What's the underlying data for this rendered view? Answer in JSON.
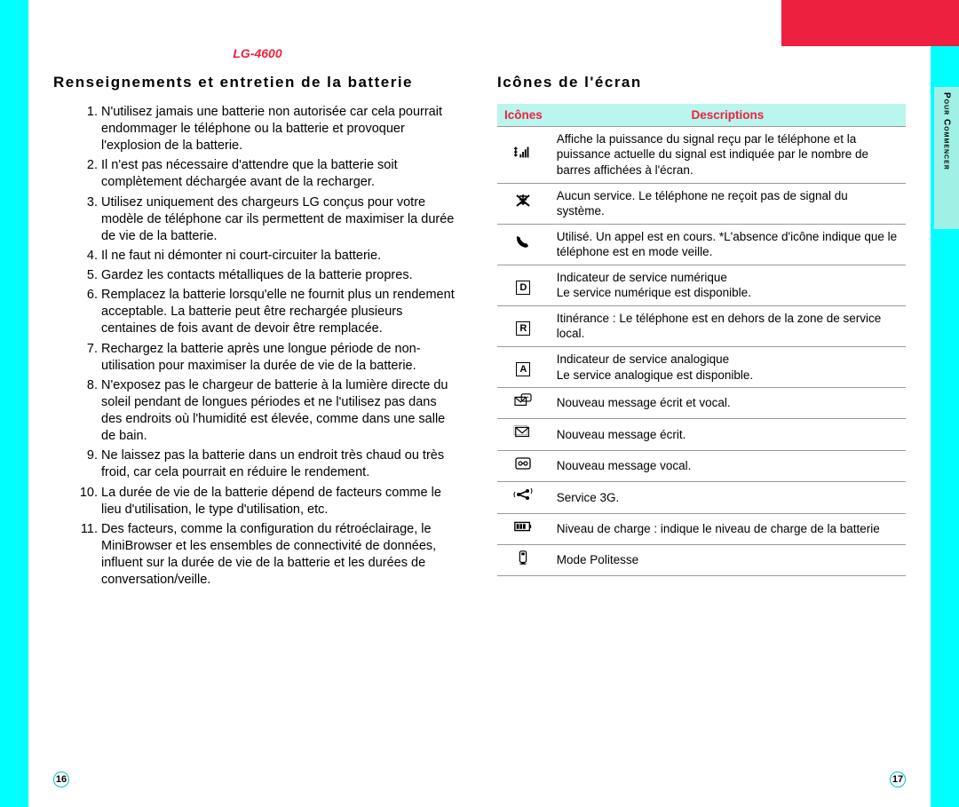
{
  "model_header": "LG-4600",
  "side_tab": "Pour Commencer",
  "left_page": {
    "title": "Renseignements et entretien de la batterie",
    "items": [
      "N'utilisez jamais une batterie non autorisée car cela pourrait endommager le téléphone ou la batterie et provoquer l'explosion de la batterie.",
      "Il n'est pas nécessaire d'attendre que la batterie soit complètement déchargée avant de la recharger.",
      "Utilisez uniquement des chargeurs LG conçus pour votre modèle de téléphone car ils permettent de maximiser la durée de vie de la batterie.",
      "Il ne faut ni démonter ni court-circuiter la batterie.",
      "Gardez les contacts métalliques de la batterie propres.",
      "Remplacez la batterie lorsqu'elle ne fournit plus un rendement acceptable. La batterie peut être rechargée plusieurs centaines de fois avant de devoir être remplacée.",
      "Rechargez la batterie après une longue période de non-utilisation pour maximiser la durée de vie de la batterie.",
      "N'exposez pas le chargeur de batterie à la lumière directe du soleil pendant de longues périodes et ne l'utilisez pas dans des endroits où l'humidité est élevée, comme dans une salle de bain.",
      "Ne laissez pas la batterie dans un endroit très chaud ou très froid, car cela pourrait en réduire le rendement.",
      "La durée de vie de la batterie dépend de facteurs comme le lieu d'utilisation, le type d'utilisation, etc.",
      "Des facteurs, comme la configuration du rétroéclairage, le MiniBrowser et les ensembles de connectivité de données, influent sur la durée de vie de la batterie et les durées de conversation/veille."
    ],
    "page_number": "16"
  },
  "right_page": {
    "title": "Icônes de l'écran",
    "headers": {
      "col1": "Icônes",
      "col2": "Descriptions"
    },
    "rows": [
      {
        "icon_name": "signal-icon",
        "desc": "Affiche la puissance du signal reçu par le téléphone et la puissance actuelle du signal est indiquée par le nombre de barres affichées à l'écran."
      },
      {
        "icon_name": "no-service-icon",
        "desc": "Aucun service. Le téléphone ne reçoit pas de signal du système."
      },
      {
        "icon_name": "call-icon",
        "desc": "Utilisé. Un appel est en cours.  *L'absence d'icône indique que le téléphone est en mode veille."
      },
      {
        "icon_name": "digital-d-icon",
        "desc": "Indicateur de service numérique\nLe service numérique est disponible."
      },
      {
        "icon_name": "roaming-r-icon",
        "desc": "Itinérance : Le téléphone est en dehors de la zone de service local."
      },
      {
        "icon_name": "analog-a-icon",
        "desc": "Indicateur de service analogique\nLe service analogique est disponible."
      },
      {
        "icon_name": "msg-both-icon",
        "desc": "Nouveau message écrit et vocal."
      },
      {
        "icon_name": "msg-text-icon",
        "desc": "Nouveau message écrit."
      },
      {
        "icon_name": "msg-voice-icon",
        "desc": "Nouveau message vocal."
      },
      {
        "icon_name": "service-3g-icon",
        "desc": "Service 3G."
      },
      {
        "icon_name": "battery-icon",
        "desc": "Niveau de charge : indique le niveau de charge de la batterie"
      },
      {
        "icon_name": "politesse-icon",
        "desc": "Mode Politesse"
      }
    ],
    "page_number": "17"
  },
  "colors": {
    "cyan": "#00ffff",
    "red": "#ee2040",
    "table_header_bg": "#baf5ee",
    "tab_bg": "#a0f0e6"
  },
  "typography": {
    "body_font": "Arial, Helvetica, sans-serif",
    "title_size_pt": 13,
    "body_size_pt": 11
  }
}
